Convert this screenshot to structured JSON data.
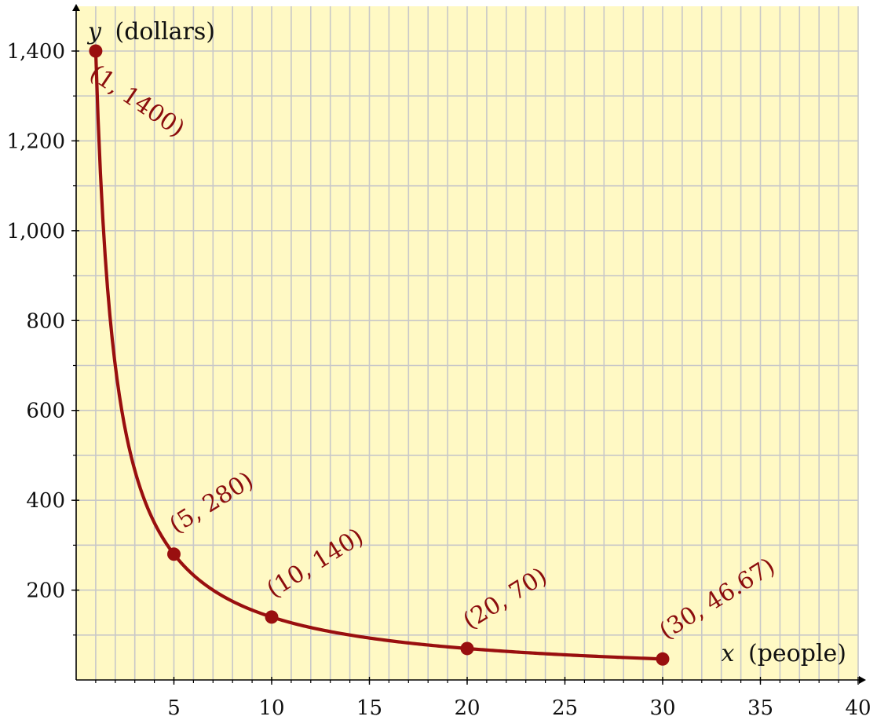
{
  "chart_data": {
    "type": "line",
    "xlabel_var": "x",
    "xlabel_unit": "(people)",
    "ylabel_var": "y",
    "ylabel_unit": "(dollars)",
    "xlim": [
      0,
      40
    ],
    "ylim": [
      0,
      1400
    ],
    "grid": true,
    "x_minor_step": 1,
    "y_minor_step": 100,
    "x_ticks": [
      5,
      10,
      15,
      20,
      25,
      30,
      35,
      40
    ],
    "x_tick_labels": [
      "5",
      "10",
      "15",
      "20",
      "25",
      "30",
      "35",
      "40"
    ],
    "y_ticks": [
      200,
      400,
      600,
      800,
      1000,
      1200,
      1400
    ],
    "y_tick_labels": [
      "200",
      "400",
      "600",
      "800",
      "1,000",
      "1,200",
      "1,400"
    ],
    "curve": {
      "function": "1400/x",
      "x_from": 1,
      "x_to": 30
    },
    "points": [
      {
        "x": 1,
        "y": 1400,
        "label": "(1, 1400)"
      },
      {
        "x": 5,
        "y": 280,
        "label": "(5, 280)"
      },
      {
        "x": 10,
        "y": 140,
        "label": "(10, 140)"
      },
      {
        "x": 20,
        "y": 70,
        "label": "(20, 70)"
      },
      {
        "x": 30,
        "y": 46.67,
        "label": "(30, 46.67)"
      }
    ],
    "colors": {
      "background": "#FFF9C4",
      "grid": "#C8C8C8",
      "curve": "#990F0F",
      "label": "#8B0D0D",
      "axis": "#000000"
    }
  }
}
